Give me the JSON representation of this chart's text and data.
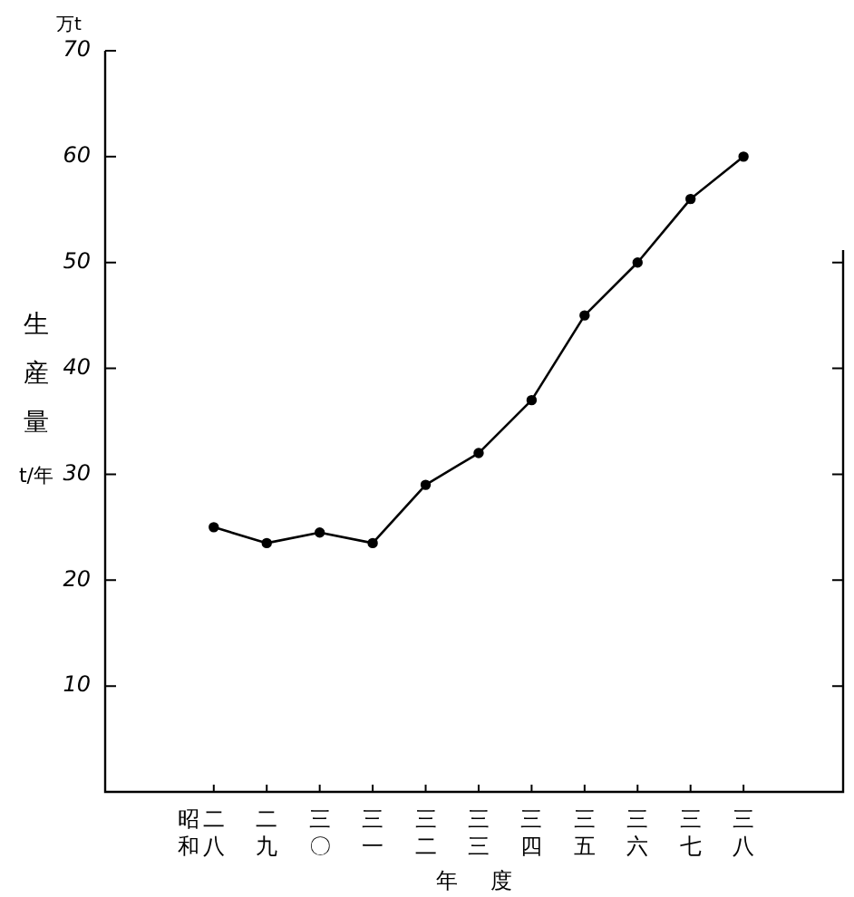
{
  "chart_data": {
    "type": "line",
    "xlabel": "年度",
    "ylabel": "生産量 t/年",
    "annotations": [
      "万t",
      "昭和"
    ],
    "categories": [
      "二八",
      "二九",
      "三〇",
      "三一",
      "三二",
      "三三",
      "三四",
      "三五",
      "三六",
      "三七",
      "三八"
    ],
    "series": [
      {
        "color": "#000000",
        "values": [
          25,
          23.5,
          24.5,
          23.5,
          29,
          32,
          37,
          45,
          50,
          56,
          60
        ]
      }
    ],
    "ylim": [
      0,
      70
    ],
    "yticks": [
      {
        "value": 0,
        "label": null
      },
      10,
      20,
      30,
      40,
      50,
      60,
      70
    ],
    "grid": false,
    "legend": false,
    "marker": "circle",
    "line_style": "solid"
  }
}
